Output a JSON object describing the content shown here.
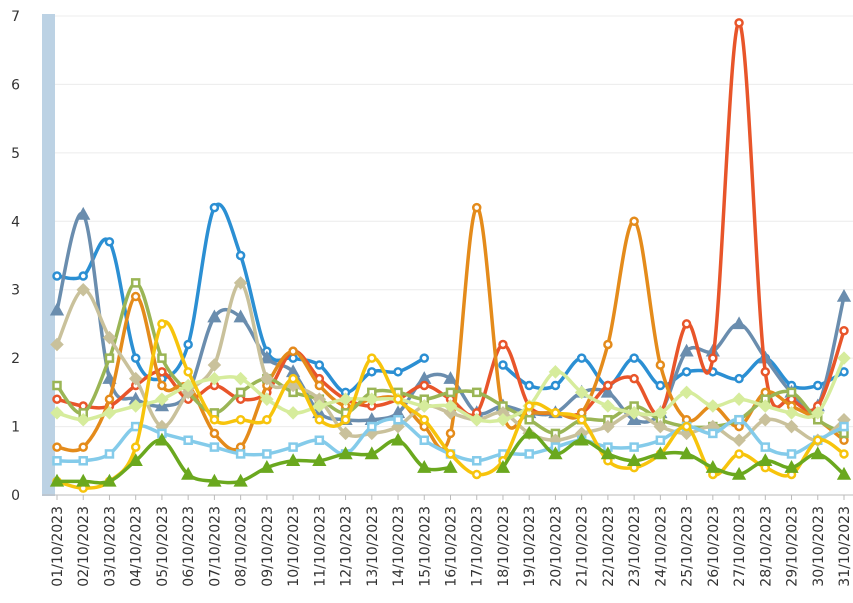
{
  "chart_data": {
    "type": "line",
    "categories": [
      "01/10/2023",
      "02/10/2023",
      "03/10/2023",
      "04/10/2023",
      "05/10/2023",
      "06/10/2023",
      "07/10/2023",
      "08/10/2023",
      "09/10/2023",
      "10/10/2023",
      "11/10/2023",
      "12/10/2023",
      "13/10/2023",
      "14/10/2023",
      "15/10/2023",
      "16/10/2023",
      "17/10/2023",
      "18/10/2023",
      "19/10/2023",
      "20/10/2023",
      "21/10/2023",
      "22/10/2023",
      "23/10/2023",
      "24/10/2023",
      "25/10/2023",
      "26/10/2023",
      "27/10/2023",
      "28/10/2023",
      "29/10/2023",
      "30/10/2023",
      "31/10/2023"
    ],
    "ylim": [
      0,
      7
    ],
    "yticks": [
      0,
      1,
      2,
      3,
      4,
      5,
      6,
      7
    ],
    "grid": true,
    "smooth": true,
    "series": [
      {
        "color": "#2b8fd3",
        "marker": "circle",
        "values": [
          3.2,
          3.2,
          3.7,
          2.0,
          1.7,
          2.2,
          4.2,
          3.5,
          2.1,
          2.0,
          1.9,
          1.5,
          1.8,
          1.8,
          2.0,
          null,
          null,
          1.9,
          1.6,
          1.6,
          2.0,
          1.6,
          2.0,
          1.6,
          1.8,
          1.8,
          1.7,
          2.0,
          1.6,
          1.6,
          1.8
        ]
      },
      {
        "color": "#6a8dae",
        "marker": "triangle",
        "values": [
          2.7,
          4.1,
          1.7,
          1.4,
          1.3,
          1.5,
          2.6,
          2.6,
          2.0,
          1.8,
          1.2,
          1.1,
          1.1,
          1.2,
          1.7,
          1.7,
          1.2,
          1.3,
          1.2,
          1.2,
          1.5,
          1.5,
          1.1,
          1.2,
          2.1,
          2.1,
          2.5,
          2.0,
          1.5,
          1.3,
          2.9
        ]
      },
      {
        "color": "#e8552a",
        "marker": "circle",
        "values": [
          1.4,
          1.3,
          1.3,
          1.6,
          1.8,
          1.4,
          1.6,
          1.4,
          1.5,
          2.1,
          1.7,
          1.4,
          1.3,
          1.4,
          1.6,
          1.4,
          1.2,
          2.2,
          1.3,
          1.2,
          1.2,
          1.6,
          1.7,
          1.2,
          2.5,
          2.0,
          6.9,
          1.8,
          1.4,
          1.3,
          2.4
        ]
      },
      {
        "color": "#e48b1b",
        "marker": "circle",
        "values": [
          0.7,
          0.7,
          1.4,
          2.9,
          1.6,
          1.6,
          0.9,
          0.7,
          1.6,
          2.1,
          1.6,
          1.3,
          1.4,
          1.4,
          1.0,
          0.9,
          4.2,
          1.2,
          1.2,
          1.2,
          1.2,
          2.2,
          4.0,
          1.9,
          1.1,
          1.3,
          1.0,
          1.5,
          1.3,
          1.1,
          0.8
        ]
      },
      {
        "color": "#9ab555",
        "marker": "square",
        "values": [
          1.6,
          1.2,
          2.0,
          3.1,
          2.0,
          1.5,
          1.2,
          1.5,
          1.7,
          1.5,
          1.4,
          1.2,
          1.5,
          1.5,
          1.4,
          1.5,
          1.5,
          1.3,
          1.1,
          0.9,
          1.1,
          1.1,
          1.3,
          1.1,
          1.0,
          1.0,
          1.1,
          1.4,
          1.5,
          1.1,
          0.9
        ]
      },
      {
        "color": "#c9c19b",
        "marker": "diamond",
        "values": [
          2.2,
          3.0,
          2.3,
          1.7,
          1.0,
          1.5,
          1.9,
          3.1,
          1.7,
          1.6,
          1.4,
          0.9,
          0.9,
          1.0,
          1.3,
          1.2,
          1.1,
          1.2,
          0.9,
          0.8,
          0.9,
          1.0,
          1.2,
          1.0,
          0.9,
          1.0,
          0.8,
          1.1,
          1.0,
          0.8,
          1.1
        ]
      },
      {
        "color": "#d6ec9c",
        "marker": "diamond",
        "values": [
          1.2,
          1.1,
          1.2,
          1.3,
          1.4,
          1.6,
          1.7,
          1.7,
          1.4,
          1.2,
          1.3,
          1.4,
          1.4,
          1.4,
          1.3,
          1.3,
          1.1,
          1.1,
          1.3,
          1.8,
          1.5,
          1.3,
          1.2,
          1.2,
          1.5,
          1.3,
          1.4,
          1.3,
          1.2,
          1.2,
          2.0
        ]
      },
      {
        "color": "#84cbea",
        "marker": "square",
        "values": [
          0.5,
          0.5,
          0.6,
          1.0,
          0.9,
          0.8,
          0.7,
          0.6,
          0.6,
          0.7,
          0.8,
          0.6,
          1.0,
          1.1,
          0.8,
          0.6,
          0.5,
          0.6,
          0.6,
          0.7,
          0.8,
          0.7,
          0.7,
          0.8,
          1.0,
          0.9,
          1.1,
          0.7,
          0.6,
          0.8,
          1.0
        ]
      },
      {
        "color": "#f7c40c",
        "marker": "circle",
        "values": [
          0.2,
          0.1,
          0.2,
          0.7,
          2.5,
          1.8,
          1.1,
          1.1,
          1.1,
          1.7,
          1.1,
          1.1,
          2.0,
          1.4,
          1.1,
          0.6,
          0.3,
          0.5,
          1.3,
          1.2,
          1.1,
          0.5,
          0.4,
          0.6,
          1.0,
          0.3,
          0.6,
          0.4,
          0.3,
          0.8,
          0.6
        ]
      },
      {
        "color": "#6aa81e",
        "marker": "triangle",
        "values": [
          0.2,
          0.2,
          0.2,
          0.5,
          0.8,
          0.3,
          0.2,
          0.2,
          0.4,
          0.5,
          0.5,
          0.6,
          0.6,
          0.8,
          0.4,
          0.4,
          null,
          0.4,
          0.9,
          0.6,
          0.8,
          0.6,
          0.5,
          0.6,
          0.6,
          0.4,
          0.3,
          0.5,
          0.4,
          0.6,
          0.3
        ]
      }
    ]
  }
}
